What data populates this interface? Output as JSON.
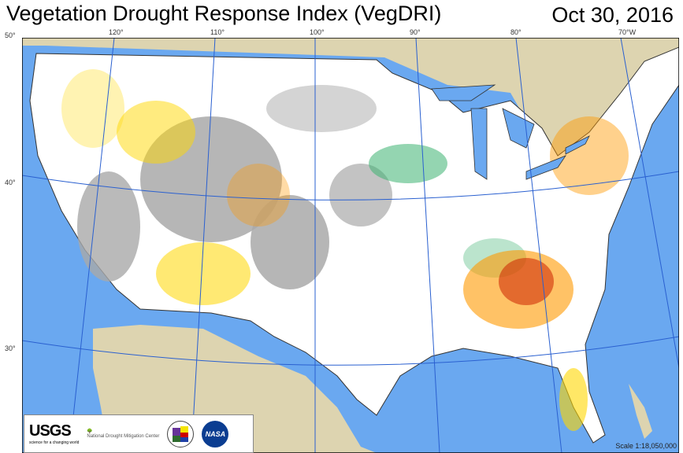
{
  "header": {
    "title": "Vegetation Drought Response Index (VegDRI)",
    "date": "Oct 30, 2016"
  },
  "graticule": {
    "latitudes": [
      "50°",
      "40°",
      "30°"
    ],
    "longitudes": [
      "120°",
      "110°",
      "100°",
      "90°",
      "80°",
      "70°W"
    ]
  },
  "logos": {
    "usgs": "USGS",
    "usgs_tagline": "science for a changing world",
    "ndmc": "National Drought Mitigation Center",
    "nasa": "NASA"
  },
  "scale": "Scale 1:18,050,000",
  "colors": {
    "ocean": "#6aa8f0",
    "land": "#ddd4b0",
    "no_data": "#a9a9a9",
    "near_normal": "#ffffff",
    "wet": "#3cb371",
    "drought_mild": "#ffd700",
    "drought_moderate": "#ff9900",
    "drought_severe": "#cc2200"
  }
}
